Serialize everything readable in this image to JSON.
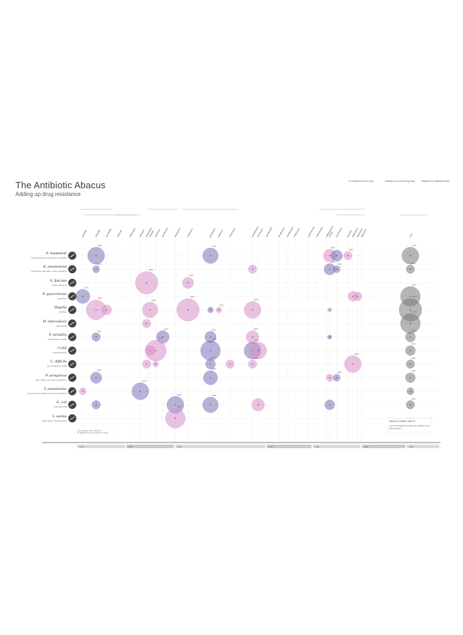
{
  "header": {
    "title": "The Antibiotic Abacus",
    "subtitle": "Adding up drug resistance"
  },
  "legend": [
    {
      "text": "no resistance to the drug",
      "color": "#777777"
    },
    {
      "text": "resistance to whole drug class",
      "color": "#cf8fc2"
    },
    {
      "text": "resistance to antibiotic family",
      "color": "#7c6fb0"
    }
  ],
  "colors": {
    "pink": "#d98fc8",
    "purple": "#7e72b8",
    "gray": "#7a7a7a",
    "line": "#cfcfcf"
  },
  "bacteria": [
    {
      "name": "A. baumannii",
      "desc": "hospital-acquired, pneumonia, meningitis",
      "icon": "a-baumannii-icon"
    },
    {
      "name": "K. pneumoniae",
      "desc": "pneumonia, meningitis, urinary infections",
      "icon": "k-pneumoniae-icon"
    },
    {
      "name": "E. faecium",
      "desc": "urinary infections",
      "icon": "e-faecium-icon"
    },
    {
      "name": "N. gonorrhoeae",
      "desc": "gonorrhea",
      "icon": "n-gonorrhoeae-icon"
    },
    {
      "name": "Shigella",
      "desc": "diarrhea",
      "icon": "shigella-icon"
    },
    {
      "name": "M. tuberculosis",
      "desc": "tuberculosis",
      "icon": "m-tuberculosis-icon"
    },
    {
      "name": "P. mirabilis",
      "desc": "kidney stones, sepsis",
      "icon": "p-mirabilis-icon"
    },
    {
      "name": "CoNS",
      "desc": "blood poisoning",
      "icon": "cons-icon"
    },
    {
      "name": "C. difficile",
      "desc": "severe diarrhea, colitis",
      "icon": "c-difficile-icon"
    },
    {
      "name": "P. aeruginosa",
      "desc": "lung, urinary, skin & blood infections",
      "icon": "p-aeruginosa-icon"
    },
    {
      "name": "S. pneumoniae",
      "desc": "pneumonia, meningitis, ear & sinus infections",
      "icon": "s-pneumoniae-icon"
    },
    {
      "name": "E. coli",
      "desc": "food poisoning",
      "icon": "e-coli-icon"
    },
    {
      "name": "S. aureus",
      "desc": "boils, sepsis, food poisoning",
      "icon": "s-aureus-icon"
    }
  ],
  "footer_row": {
    "text1": "grey wedges show bacteria",
    "text2": "as diagnosed as a resistance threat"
  },
  "drug_groups": [
    {
      "label": "PENICILLINS"
    },
    {
      "label": "CEPHALOSPORINS"
    },
    {
      "label": "CARBAPENEMS"
    },
    {
      "label": "AMINOGLYCOSIDES"
    },
    {
      "label": "FLUOROQUINOLONES"
    },
    {
      "label": "MACROLIDES"
    },
    {
      "label": "OTHERS"
    },
    {
      "label": "TOTAL"
    }
  ],
  "whats_new": {
    "title": "WHAT'S COMING NEXT?",
    "text": "new drug classes entered the market in the last 30 years"
  },
  "chart_data": {
    "type": "scatter",
    "x_columns": [
      "penicillin",
      "ampicillin",
      "amoxicillin",
      "cefazolin",
      "ceftriaxone",
      "cefepime",
      "ceftazidime",
      "cefoxitin",
      "imipenem",
      "meropenem",
      "ertapenem",
      "doripenem",
      "gentamicin",
      "amikacin",
      "tobramycin",
      "streptomycin",
      "kanamycin",
      "ciprofloxacin",
      "levofloxacin",
      "moxifloxacin",
      "norfloxacin",
      "erythromycin",
      "azithromycin",
      "clarithromycin",
      "colistin",
      "vancomycin",
      "linezolid",
      "daptomycin",
      "tigecycline",
      "rifampicin",
      "total"
    ],
    "y_rows": [
      "A. baumannii",
      "K. pneumoniae",
      "E. faecium",
      "N. gonorrhoeae",
      "Shigella",
      "M. tuberculosis",
      "P. mirabilis",
      "CoNS",
      "C. difficile",
      "P. aeruginosa",
      "S. pneumoniae",
      "E. coli",
      "S. aureus"
    ],
    "points": [
      {
        "row": 0,
        "col": 1,
        "r": 12,
        "series": "purple",
        "label": "80%"
      },
      {
        "row": 0,
        "col": 12,
        "r": 11,
        "series": "purple",
        "label": "70%"
      },
      {
        "row": 0,
        "col": 24,
        "r": 9,
        "series": "pink",
        "label": "65%"
      },
      {
        "row": 0,
        "col": 25,
        "r": 8,
        "series": "purple",
        "label": ""
      },
      {
        "row": 0,
        "col": 26,
        "r": 6,
        "series": "pink",
        "label": "40%"
      },
      {
        "row": 0,
        "col": 30,
        "r": 12,
        "series": "gray",
        "label": "70%"
      },
      {
        "row": 1,
        "col": 1,
        "r": 5,
        "series": "purple",
        "label": "40%"
      },
      {
        "row": 1,
        "col": 15,
        "r": 6,
        "series": "pink",
        "label": ""
      },
      {
        "row": 1,
        "col": 24,
        "r": 8,
        "series": "purple",
        "label": "50%"
      },
      {
        "row": 1,
        "col": 25,
        "r": 5,
        "series": "purple",
        "label": "60%"
      },
      {
        "row": 1,
        "col": 30,
        "r": 6,
        "series": "gray",
        "label": "50%"
      },
      {
        "row": 2,
        "col": 6,
        "r": 16,
        "series": "pink",
        "label": "85%"
      },
      {
        "row": 2,
        "col": 11,
        "r": 8,
        "series": "pink",
        "label": "10%"
      },
      {
        "row": 3,
        "col": 0,
        "r": 10,
        "series": "purple",
        "label": "70%"
      },
      {
        "row": 3,
        "col": 27,
        "r": 7,
        "series": "pink",
        "label": ""
      },
      {
        "row": 3,
        "col": 28,
        "r": 6,
        "series": "pink",
        "label": ""
      },
      {
        "row": 3,
        "col": 30,
        "r": 14,
        "series": "gray",
        "label": "80%"
      },
      {
        "row": 4,
        "col": 1,
        "r": 14,
        "series": "pink",
        "label": "80%"
      },
      {
        "row": 4,
        "col": 2,
        "r": 7,
        "series": "pink",
        "label": ""
      },
      {
        "row": 4,
        "col": 7,
        "r": 11,
        "series": "pink",
        "label": "55%"
      },
      {
        "row": 4,
        "col": 11,
        "r": 16,
        "series": "pink",
        "label": "85%"
      },
      {
        "row": 4,
        "col": 12,
        "r": 4,
        "series": "purple",
        "label": ""
      },
      {
        "row": 4,
        "col": 13,
        "r": 4,
        "series": "pink",
        "label": "10%"
      },
      {
        "row": 4,
        "col": 15,
        "r": 12,
        "series": "pink",
        "label": "50%"
      },
      {
        "row": 4,
        "col": 24,
        "r": 3,
        "series": "pink",
        "label": ""
      },
      {
        "row": 4,
        "col": 30,
        "r": 16,
        "series": "gray",
        "label": "85%"
      },
      {
        "row": 5,
        "col": 6,
        "r": 6,
        "series": "pink",
        "label": ""
      },
      {
        "row": 5,
        "col": 30,
        "r": 14,
        "series": "gray",
        "label": "70%"
      },
      {
        "row": 6,
        "col": 1,
        "r": 6,
        "series": "purple",
        "label": "10%"
      },
      {
        "row": 6,
        "col": 9,
        "r": 9,
        "series": "purple",
        "label": "20%"
      },
      {
        "row": 6,
        "col": 12,
        "r": 8,
        "series": "purple",
        "label": "20%"
      },
      {
        "row": 6,
        "col": 15,
        "r": 9,
        "series": "pink",
        "label": "20%"
      },
      {
        "row": 6,
        "col": 24,
        "r": 3,
        "series": "purple",
        "label": ""
      },
      {
        "row": 6,
        "col": 30,
        "r": 7,
        "series": "gray",
        "label": "10%"
      },
      {
        "row": 7,
        "col": 7,
        "r": 7,
        "series": "pink",
        "label": ""
      },
      {
        "row": 7,
        "col": 8,
        "r": 15,
        "series": "pink",
        "label": "75%"
      },
      {
        "row": 7,
        "col": 12,
        "r": 14,
        "series": "purple",
        "label": "80%"
      },
      {
        "row": 7,
        "col": 15,
        "r": 12,
        "series": "purple",
        "label": "70%"
      },
      {
        "row": 7,
        "col": 16,
        "r": 12,
        "series": "pink",
        "label": ""
      },
      {
        "row": 7,
        "col": 30,
        "r": 7,
        "series": "gray",
        "label": "20%"
      },
      {
        "row": 8,
        "col": 6,
        "r": 6,
        "series": "pink",
        "label": ""
      },
      {
        "row": 8,
        "col": 8,
        "r": 4,
        "series": "pink",
        "label": ""
      },
      {
        "row": 8,
        "col": 12,
        "r": 7,
        "series": "purple",
        "label": "20%"
      },
      {
        "row": 8,
        "col": 14,
        "r": 6,
        "series": "pink",
        "label": ""
      },
      {
        "row": 8,
        "col": 15,
        "r": 6,
        "series": "pink",
        "label": "10%"
      },
      {
        "row": 8,
        "col": 27,
        "r": 12,
        "series": "pink",
        "label": "40%"
      },
      {
        "row": 8,
        "col": 30,
        "r": 6,
        "series": "gray",
        "label": "10%"
      },
      {
        "row": 9,
        "col": 1,
        "r": 8,
        "series": "purple",
        "label": "20%"
      },
      {
        "row": 9,
        "col": 12,
        "r": 10,
        "series": "purple",
        "label": "25%"
      },
      {
        "row": 9,
        "col": 24,
        "r": 5,
        "series": "pink",
        "label": ""
      },
      {
        "row": 9,
        "col": 25,
        "r": 5,
        "series": "purple",
        "label": "30%"
      },
      {
        "row": 9,
        "col": 30,
        "r": 7,
        "series": "gray",
        "label": "30%"
      },
      {
        "row": 10,
        "col": 0,
        "r": 5,
        "series": "pink",
        "label": ""
      },
      {
        "row": 10,
        "col": 5,
        "r": 12,
        "series": "purple",
        "label": "45%"
      },
      {
        "row": 10,
        "col": 30,
        "r": 5,
        "series": "gray",
        "label": ""
      },
      {
        "row": 11,
        "col": 1,
        "r": 6,
        "series": "purple",
        "label": ""
      },
      {
        "row": 11,
        "col": 10,
        "r": 12,
        "series": "purple",
        "label": "50%"
      },
      {
        "row": 11,
        "col": 12,
        "r": 11,
        "series": "purple",
        "label": "40%"
      },
      {
        "row": 11,
        "col": 16,
        "r": 9,
        "series": "pink",
        "label": ""
      },
      {
        "row": 11,
        "col": 24,
        "r": 7,
        "series": "purple",
        "label": ""
      },
      {
        "row": 11,
        "col": 30,
        "r": 6,
        "series": "gray",
        "label": "15%"
      },
      {
        "row": 12,
        "col": 10,
        "r": 14,
        "series": "pink",
        "label": "60%"
      }
    ],
    "timeline": [
      "1940",
      "1950",
      "1960",
      "1970",
      "1980",
      "1990",
      "2000",
      "2010"
    ]
  }
}
